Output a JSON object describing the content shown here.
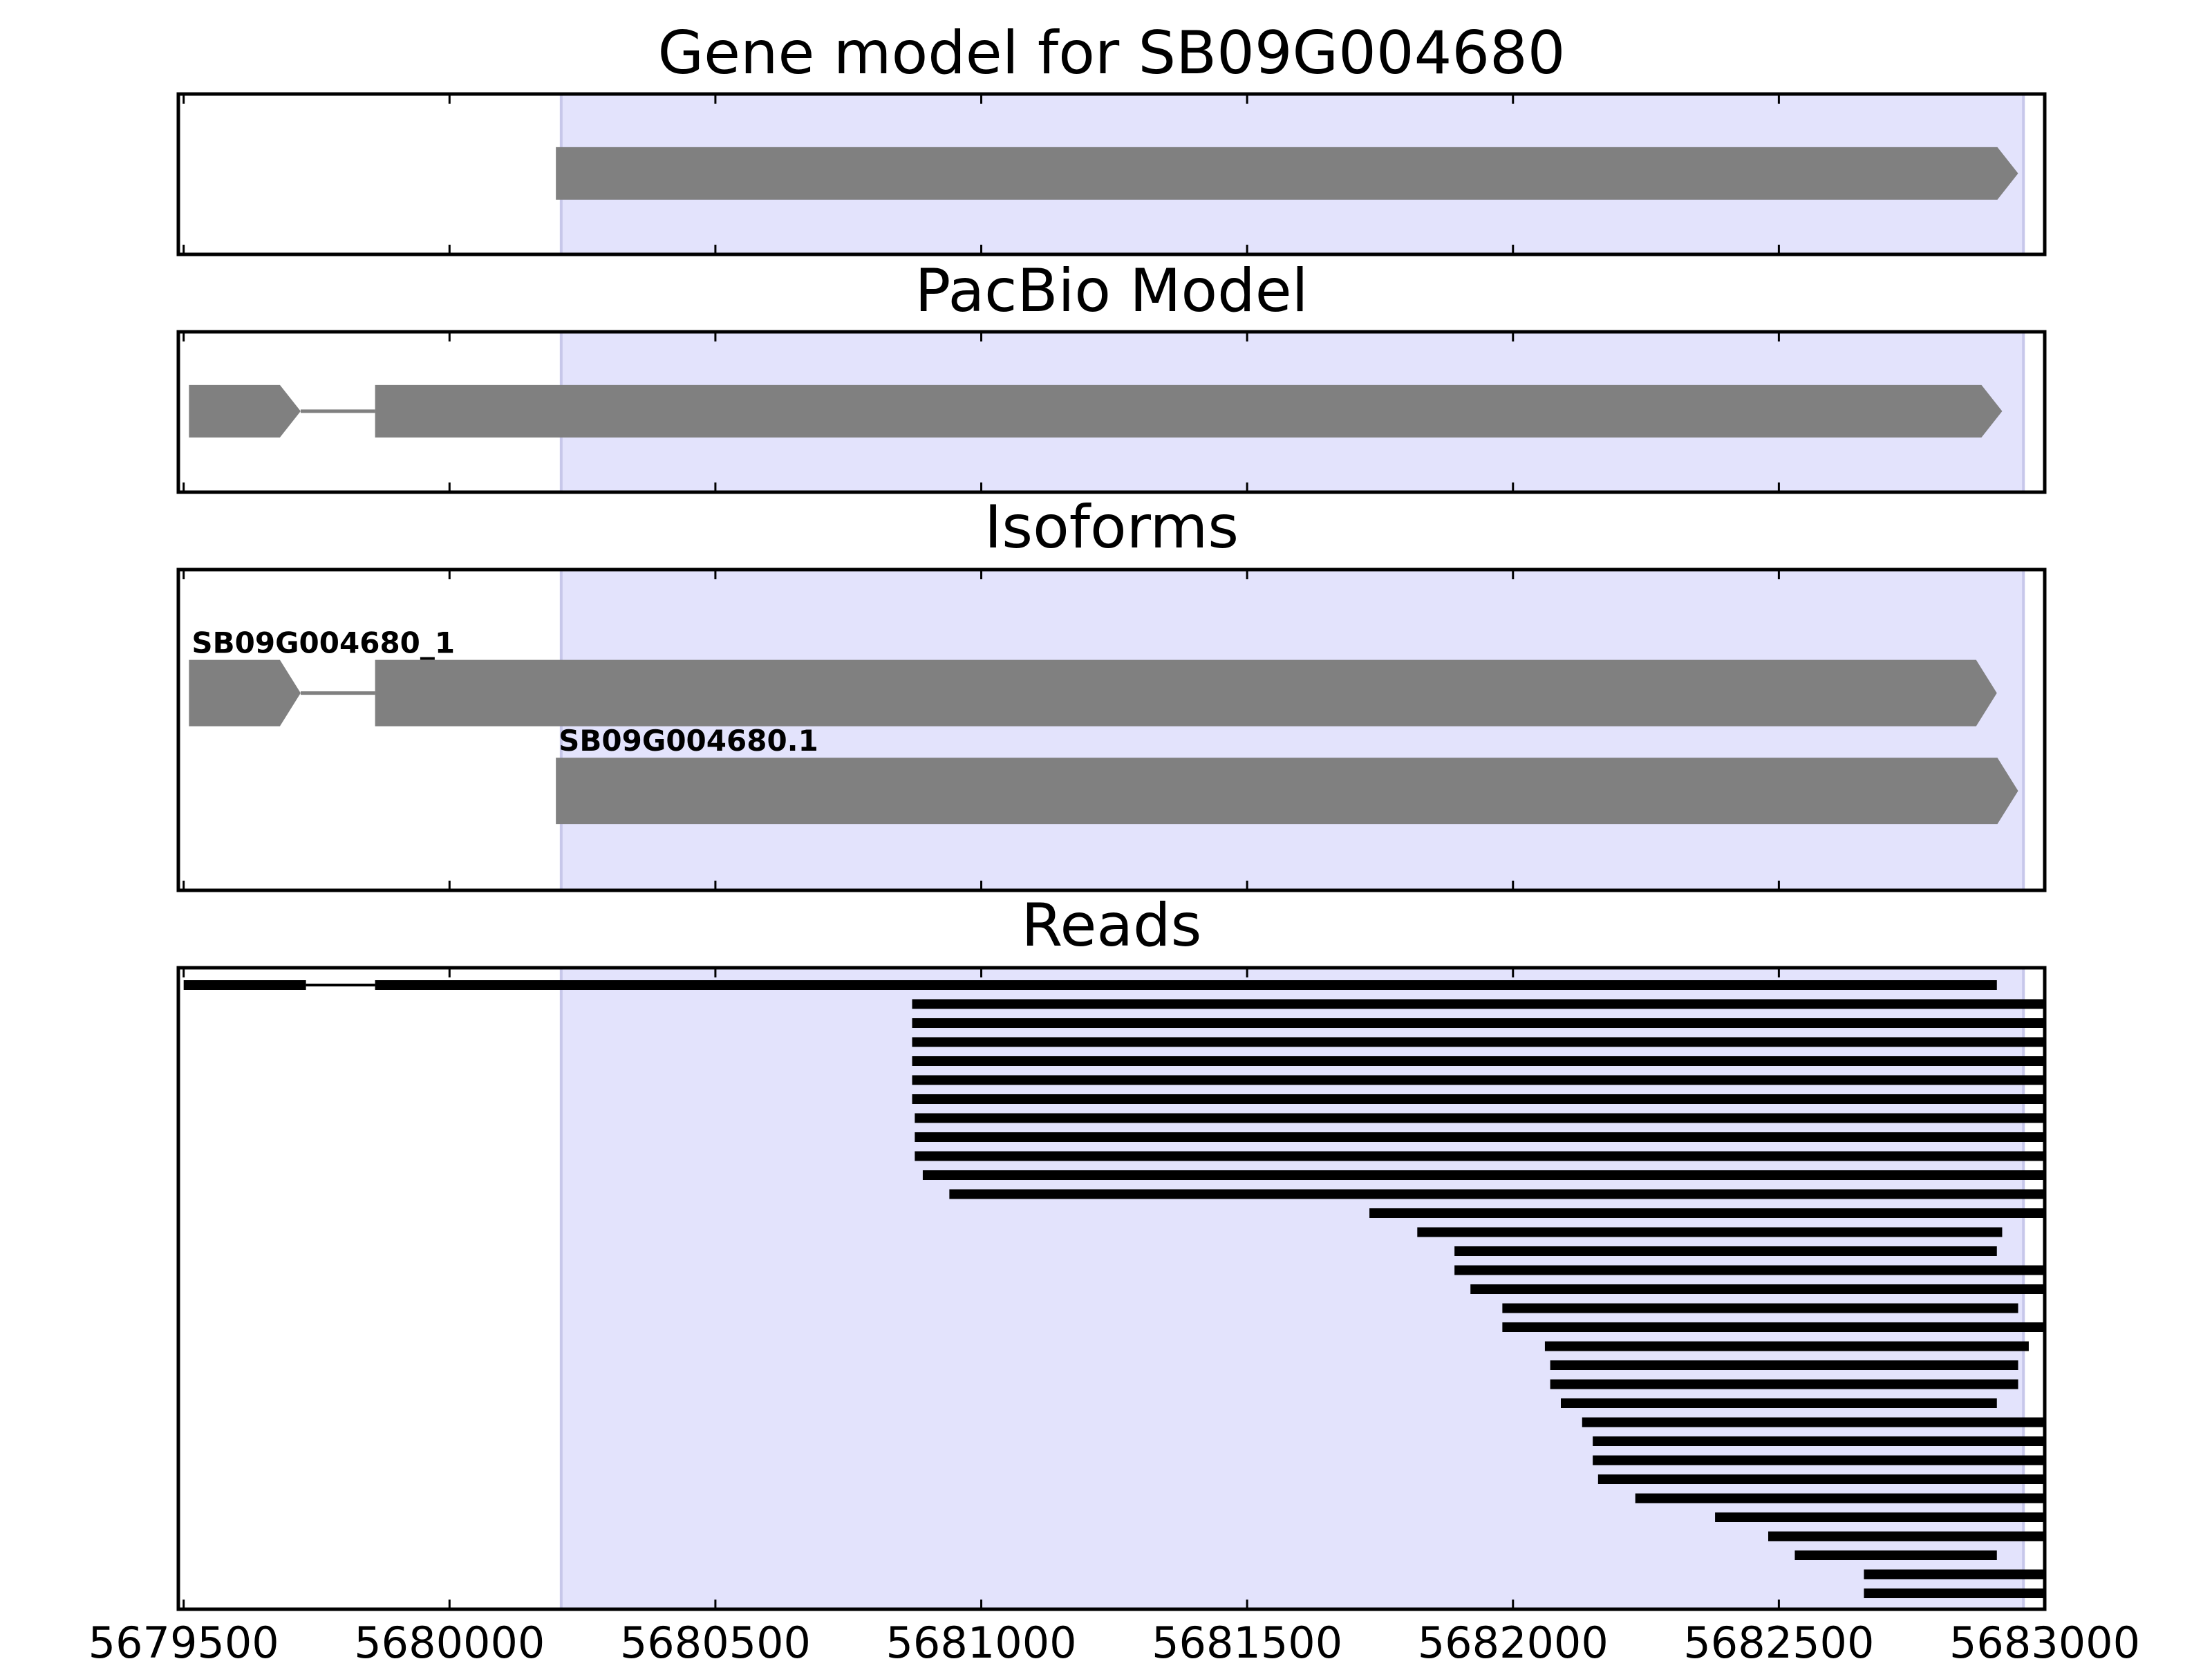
{
  "chart_data": {
    "type": "gene-track",
    "xlim": [
      5679490,
      5683000
    ],
    "x_ticks": [
      5679500,
      5680000,
      5680500,
      5681000,
      5681500,
      5682000,
      5682500,
      5683000
    ],
    "x_tick_labels": [
      "5679500",
      "5680000",
      "5680500",
      "5681000",
      "5681500",
      "5682000",
      "5682500",
      "5683000"
    ],
    "highlight_region": [
      5680210,
      5682960
    ],
    "colors": {
      "highlight": "#e3e3fc",
      "highlight_edge": "#c7c7ea",
      "feature": "#808080",
      "read": "#000000",
      "frame": "#000000"
    },
    "panels": [
      {
        "title": "Gene model for SB09G004680",
        "models": [
          {
            "label": "",
            "exons": [
              [
                5680200,
                5682950
              ]
            ],
            "strand": "+",
            "row": 0
          }
        ],
        "rows": 1
      },
      {
        "title": "PacBio Model",
        "models": [
          {
            "label": "",
            "exons": [
              [
                5679510,
                5679720
              ],
              [
                5679860,
                5682920
              ]
            ],
            "strand": "+",
            "row": 0
          }
        ],
        "rows": 1
      },
      {
        "title": "Isoforms",
        "models": [
          {
            "label": "SB09G004680_1",
            "exons": [
              [
                5679510,
                5679720
              ],
              [
                5679860,
                5682910
              ]
            ],
            "strand": "+",
            "row": 0
          },
          {
            "label": "SB09G004680.1",
            "exons": [
              [
                5680200,
                5682950
              ]
            ],
            "strand": "+",
            "row": 1
          }
        ],
        "rows": 2
      },
      {
        "title": "Reads",
        "reads": [
          [
            [
              5679500,
              5679730
            ],
            [
              5679860,
              5682910
            ]
          ],
          [
            [
              5680870,
              5683000
            ]
          ],
          [
            [
              5680870,
              5683000
            ]
          ],
          [
            [
              5680870,
              5683000
            ]
          ],
          [
            [
              5680870,
              5683000
            ]
          ],
          [
            [
              5680870,
              5683000
            ]
          ],
          [
            [
              5680870,
              5683000
            ]
          ],
          [
            [
              5680875,
              5683000
            ]
          ],
          [
            [
              5680875,
              5683000
            ]
          ],
          [
            [
              5680875,
              5683000
            ]
          ],
          [
            [
              5680890,
              5683000
            ]
          ],
          [
            [
              5680940,
              5683000
            ]
          ],
          [
            [
              5681730,
              5683000
            ]
          ],
          [
            [
              5681820,
              5682920
            ]
          ],
          [
            [
              5681890,
              5682910
            ]
          ],
          [
            [
              5681890,
              5683000
            ]
          ],
          [
            [
              5681920,
              5683000
            ]
          ],
          [
            [
              5681980,
              5682950
            ]
          ],
          [
            [
              5681980,
              5683000
            ]
          ],
          [
            [
              5682060,
              5682970
            ]
          ],
          [
            [
              5682070,
              5682950
            ]
          ],
          [
            [
              5682070,
              5682950
            ]
          ],
          [
            [
              5682090,
              5682910
            ]
          ],
          [
            [
              5682130,
              5683000
            ]
          ],
          [
            [
              5682150,
              5683000
            ]
          ],
          [
            [
              5682150,
              5683000
            ]
          ],
          [
            [
              5682160,
              5683000
            ]
          ],
          [
            [
              5682230,
              5683000
            ]
          ],
          [
            [
              5682380,
              5683000
            ]
          ],
          [
            [
              5682480,
              5683000
            ]
          ],
          [
            [
              5682530,
              5682910
            ]
          ],
          [
            [
              5682660,
              5683000
            ]
          ],
          [
            [
              5682660,
              5683000
            ]
          ]
        ]
      }
    ]
  }
}
